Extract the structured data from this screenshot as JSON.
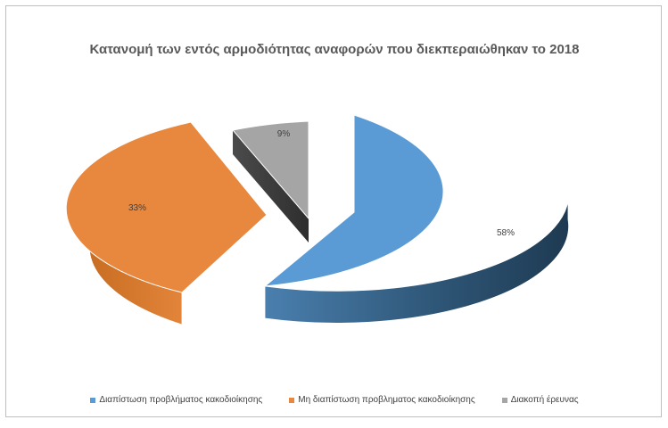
{
  "colors": {
    "slice_blue": "#5b9bd5",
    "slice_orange": "#e8883e",
    "slice_gray": "#a5a5a5"
  },
  "chart_data": {
    "type": "pie",
    "title": "Κατανομή των εντός αρμοδιότητας αναφορών που διεκπεραιώθηκαν το 2018",
    "style": "3d-exploded",
    "legend_position": "bottom",
    "categories": [
      "Διαπίστωση προβλήματος κακοδιοίκησης",
      "Μη διαπίστωση προβληματος κακοδιοίκησης",
      "Διακοπή έρευνας"
    ],
    "values": [
      58,
      33,
      9
    ],
    "labels": [
      "58%",
      "33%",
      "9%"
    ]
  }
}
